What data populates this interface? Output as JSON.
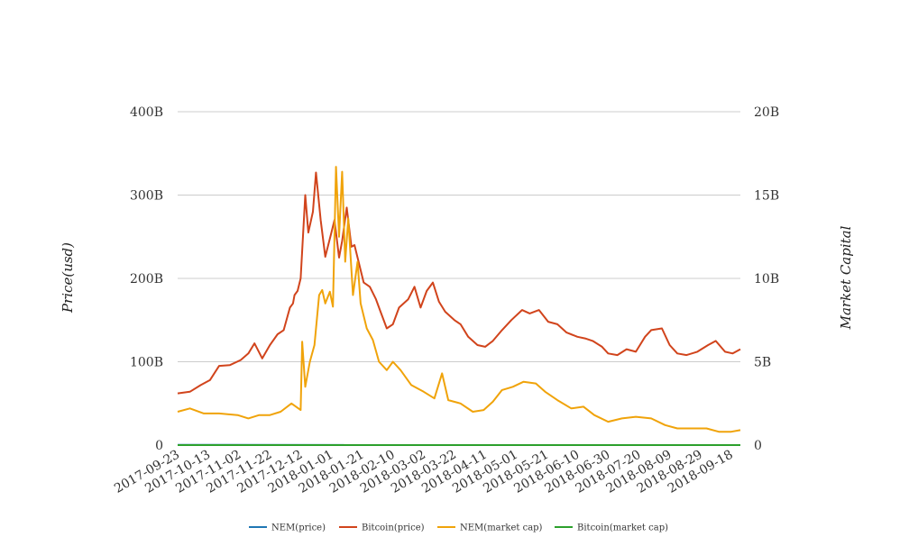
{
  "chart_data": {
    "type": "line",
    "title": "",
    "y_left_label": "Price(usd)",
    "y_right_label": "Market Capital",
    "y_left_ticks": [
      "0",
      "100B",
      "200B",
      "300B",
      "400B"
    ],
    "y_right_ticks": [
      "0",
      "5B",
      "10B",
      "15B",
      "20B"
    ],
    "ylim_left": [
      0,
      400
    ],
    "ylim_right": [
      0,
      20
    ],
    "x_range": [
      "2017-09-23",
      "2018-09-24"
    ],
    "x_ticks": [
      "2017-09-23",
      "2017-10-13",
      "2017-11-02",
      "2017-11-22",
      "2017-12-12",
      "2018-01-01",
      "2018-01-21",
      "2018-02-10",
      "2018-03-02",
      "2018-03-22",
      "2018-04-11",
      "2018-05-01",
      "2018-05-21",
      "2018-06-10",
      "2018-06-30",
      "2018-07-20",
      "2018-08-09",
      "2018-08-29",
      "2018-09-18"
    ],
    "legend_position": "bottom",
    "grid": true,
    "series": [
      {
        "name": "NEM(price)",
        "color": "#1f77b4",
        "axis": "left",
        "x": [
          "2017-09-23",
          "2018-09-24"
        ],
        "values": [
          0.25,
          0.1
        ]
      },
      {
        "name": "Bitcoin(price)",
        "color": "#d1441c",
        "axis": "left",
        "x": [
          "2017-09-23",
          "2017-10-01",
          "2017-10-08",
          "2017-10-14",
          "2017-10-20",
          "2017-10-27",
          "2017-11-03",
          "2017-11-08",
          "2017-11-12",
          "2017-11-17",
          "2017-11-22",
          "2017-11-27",
          "2017-12-01",
          "2017-12-05",
          "2017-12-07",
          "2017-12-08",
          "2017-12-10",
          "2017-12-12",
          "2017-12-15",
          "2017-12-17",
          "2017-12-20",
          "2017-12-22",
          "2017-12-25",
          "2017-12-28",
          "2018-01-01",
          "2018-01-03",
          "2018-01-06",
          "2018-01-08",
          "2018-01-11",
          "2018-01-14",
          "2018-01-16",
          "2018-01-18",
          "2018-01-22",
          "2018-01-26",
          "2018-01-30",
          "2018-02-02",
          "2018-02-06",
          "2018-02-10",
          "2018-02-14",
          "2018-02-20",
          "2018-02-24",
          "2018-02-28",
          "2018-03-04",
          "2018-03-08",
          "2018-03-12",
          "2018-03-16",
          "2018-03-22",
          "2018-03-26",
          "2018-03-31",
          "2018-04-06",
          "2018-04-11",
          "2018-04-16",
          "2018-04-22",
          "2018-04-28",
          "2018-05-05",
          "2018-05-10",
          "2018-05-16",
          "2018-05-22",
          "2018-05-28",
          "2018-06-03",
          "2018-06-10",
          "2018-06-15",
          "2018-06-20",
          "2018-06-26",
          "2018-06-30",
          "2018-07-06",
          "2018-07-12",
          "2018-07-18",
          "2018-07-24",
          "2018-07-28",
          "2018-08-04",
          "2018-08-09",
          "2018-08-14",
          "2018-08-20",
          "2018-08-27",
          "2018-09-03",
          "2018-09-08",
          "2018-09-14",
          "2018-09-19",
          "2018-09-24"
        ],
        "values": [
          62,
          64,
          72,
          78,
          95,
          96,
          102,
          110,
          122,
          104,
          120,
          133,
          138,
          165,
          170,
          180,
          185,
          200,
          300,
          255,
          280,
          327,
          270,
          226,
          255,
          270,
          225,
          245,
          285,
          238,
          240,
          225,
          195,
          190,
          175,
          160,
          140,
          145,
          165,
          175,
          190,
          165,
          185,
          195,
          172,
          160,
          150,
          145,
          130,
          120,
          118,
          125,
          138,
          150,
          162,
          158,
          162,
          148,
          145,
          135,
          130,
          128,
          125,
          118,
          110,
          108,
          115,
          112,
          130,
          138,
          140,
          120,
          110,
          108,
          112,
          120,
          125,
          112,
          110,
          115
        ]
      },
      {
        "name": "NEM(market cap)",
        "color": "#f0a30a",
        "axis": "right",
        "x": [
          "2017-09-23",
          "2017-10-01",
          "2017-10-10",
          "2017-10-20",
          "2017-11-01",
          "2017-11-08",
          "2017-11-15",
          "2017-11-22",
          "2017-11-29",
          "2017-12-06",
          "2017-12-12",
          "2017-12-13",
          "2017-12-15",
          "2017-12-18",
          "2017-12-21",
          "2017-12-24",
          "2017-12-26",
          "2017-12-28",
          "2017-12-31",
          "2018-01-02",
          "2018-01-04",
          "2018-01-06",
          "2018-01-08",
          "2018-01-10",
          "2018-01-12",
          "2018-01-15",
          "2018-01-18",
          "2018-01-20",
          "2018-01-24",
          "2018-01-28",
          "2018-02-01",
          "2018-02-06",
          "2018-02-10",
          "2018-02-15",
          "2018-02-22",
          "2018-03-02",
          "2018-03-09",
          "2018-03-14",
          "2018-03-18",
          "2018-03-26",
          "2018-04-03",
          "2018-04-10",
          "2018-04-16",
          "2018-04-22",
          "2018-04-29",
          "2018-05-06",
          "2018-05-14",
          "2018-05-20",
          "2018-05-28",
          "2018-06-06",
          "2018-06-14",
          "2018-06-21",
          "2018-06-30",
          "2018-07-09",
          "2018-07-18",
          "2018-07-28",
          "2018-08-06",
          "2018-08-14",
          "2018-08-24",
          "2018-09-02",
          "2018-09-10",
          "2018-09-18",
          "2018-09-24"
        ],
        "values": [
          2.0,
          2.2,
          1.9,
          1.9,
          1.8,
          1.6,
          1.8,
          1.8,
          2.0,
          2.5,
          2.1,
          6.2,
          3.5,
          5.0,
          6.0,
          9.0,
          9.3,
          8.5,
          9.2,
          8.3,
          16.7,
          12.5,
          16.4,
          11.0,
          13.6,
          9.0,
          11.0,
          8.5,
          7.0,
          6.3,
          5.0,
          4.5,
          5.0,
          4.5,
          3.6,
          3.2,
          2.8,
          4.3,
          2.7,
          2.5,
          2.0,
          2.1,
          2.6,
          3.3,
          3.5,
          3.8,
          3.7,
          3.2,
          2.7,
          2.2,
          2.3,
          1.8,
          1.4,
          1.6,
          1.7,
          1.6,
          1.2,
          1.0,
          1.0,
          1.0,
          0.8,
          0.8,
          0.9
        ]
      },
      {
        "name": "Bitcoin(market cap)",
        "color": "#2ca02c",
        "axis": "right",
        "x": [
          "2017-09-23",
          "2018-09-24"
        ],
        "values": [
          0.0,
          0.0
        ]
      }
    ]
  }
}
